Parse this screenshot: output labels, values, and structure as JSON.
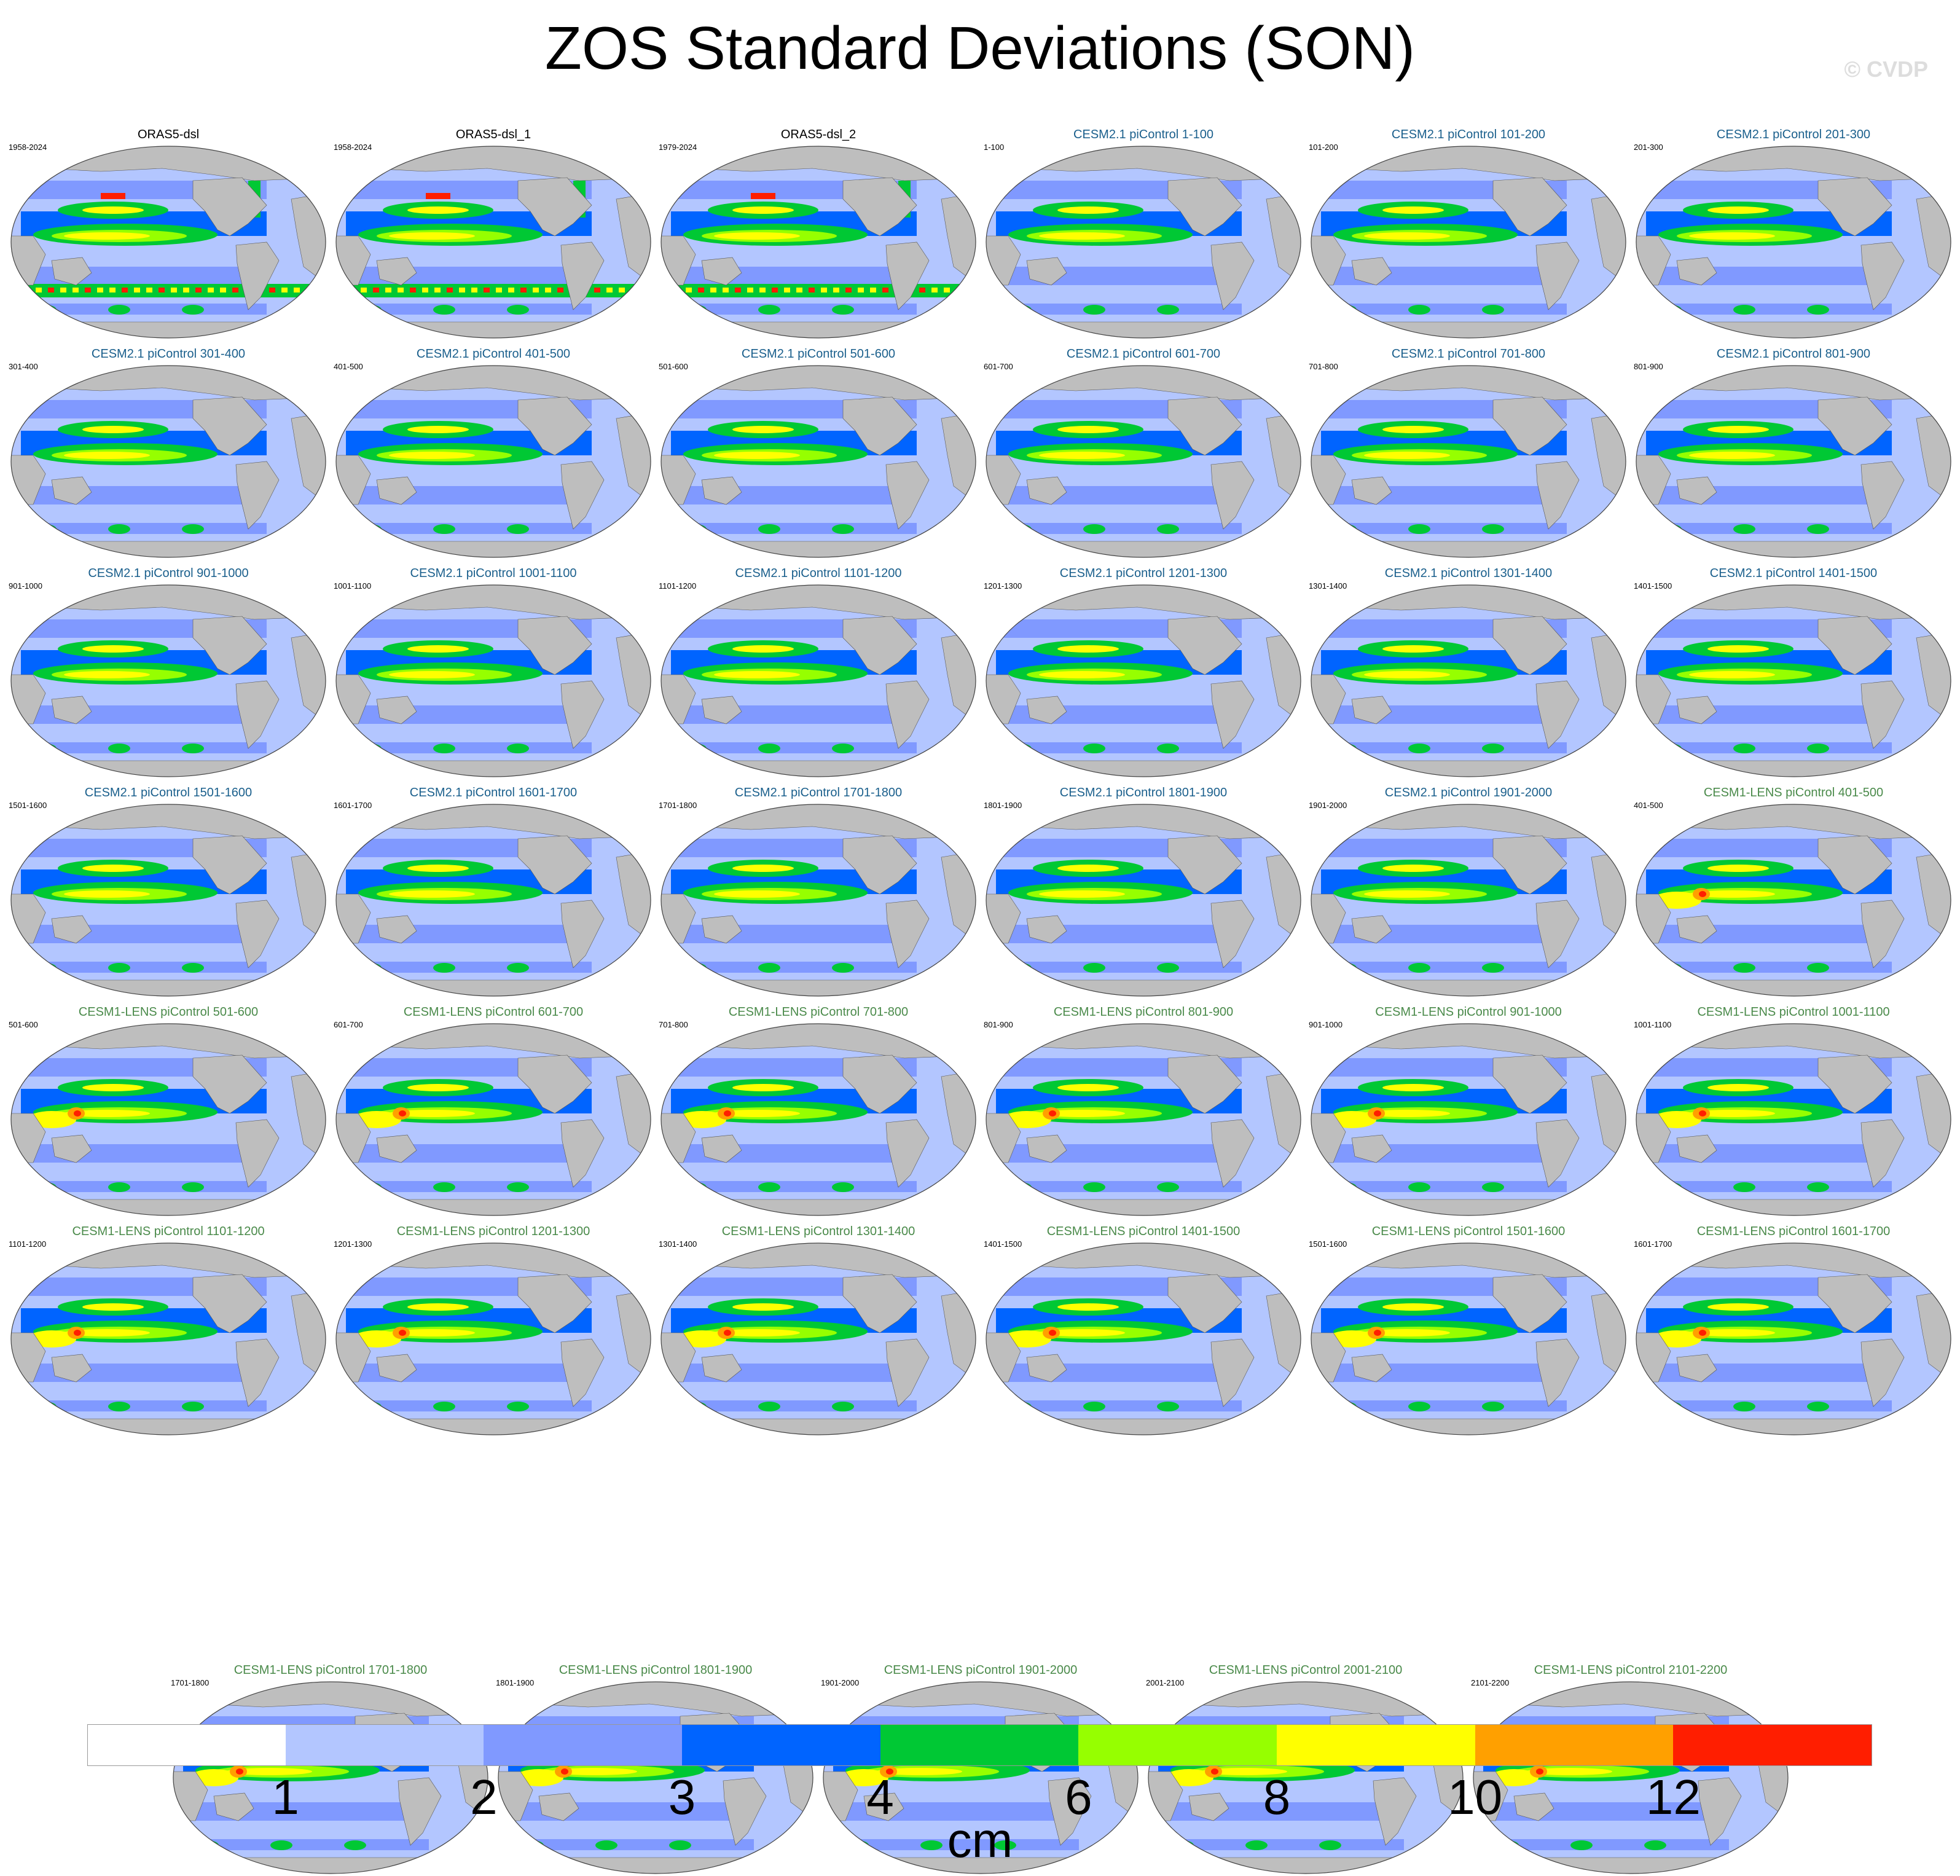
{
  "title": "ZOS Standard Deviations (SON)",
  "copyright": "© CVDP",
  "colorbar": {
    "unit": "cm",
    "tick_labels": [
      "1",
      "2",
      "3",
      "4",
      "6",
      "8",
      "10",
      "12"
    ],
    "colors": [
      "#ffffff",
      "#b3c6ff",
      "#8099ff",
      "#0064ff",
      "#00c834",
      "#96ff00",
      "#ffff00",
      "#ffa000",
      "#ff1e00"
    ]
  },
  "land_color": "#bebebe",
  "panels": [
    {
      "title": "ORAS5-dsl",
      "range": "1958-2024",
      "group": "obs"
    },
    {
      "title": "ORAS5-dsl_1",
      "range": "1958-2024",
      "group": "obs"
    },
    {
      "title": "ORAS5-dsl_2",
      "range": "1979-2024",
      "group": "obs"
    },
    {
      "title": "CESM2.1 piControl 1-100",
      "range": "1-100",
      "group": "c2"
    },
    {
      "title": "CESM2.1 piControl 101-200",
      "range": "101-200",
      "group": "c2"
    },
    {
      "title": "CESM2.1 piControl 201-300",
      "range": "201-300",
      "group": "c2"
    },
    {
      "title": "CESM2.1 piControl 301-400",
      "range": "301-400",
      "group": "c2"
    },
    {
      "title": "CESM2.1 piControl 401-500",
      "range": "401-500",
      "group": "c2"
    },
    {
      "title": "CESM2.1 piControl 501-600",
      "range": "501-600",
      "group": "c2"
    },
    {
      "title": "CESM2.1 piControl 601-700",
      "range": "601-700",
      "group": "c2"
    },
    {
      "title": "CESM2.1 piControl 701-800",
      "range": "701-800",
      "group": "c2"
    },
    {
      "title": "CESM2.1 piControl 801-900",
      "range": "801-900",
      "group": "c2"
    },
    {
      "title": "CESM2.1 piControl 901-1000",
      "range": "901-1000",
      "group": "c2"
    },
    {
      "title": "CESM2.1 piControl 1001-1100",
      "range": "1001-1100",
      "group": "c2"
    },
    {
      "title": "CESM2.1 piControl 1101-1200",
      "range": "1101-1200",
      "group": "c2"
    },
    {
      "title": "CESM2.1 piControl 1201-1300",
      "range": "1201-1300",
      "group": "c2"
    },
    {
      "title": "CESM2.1 piControl 1301-1400",
      "range": "1301-1400",
      "group": "c2"
    },
    {
      "title": "CESM2.1 piControl 1401-1500",
      "range": "1401-1500",
      "group": "c2"
    },
    {
      "title": "CESM2.1 piControl 1501-1600",
      "range": "1501-1600",
      "group": "c2"
    },
    {
      "title": "CESM2.1 piControl 1601-1700",
      "range": "1601-1700",
      "group": "c2"
    },
    {
      "title": "CESM2.1 piControl 1701-1800",
      "range": "1701-1800",
      "group": "c2"
    },
    {
      "title": "CESM2.1 piControl 1801-1900",
      "range": "1801-1900",
      "group": "c2"
    },
    {
      "title": "CESM2.1 piControl 1901-2000",
      "range": "1901-2000",
      "group": "c2"
    },
    {
      "title": "CESM1-LENS piControl 401-500",
      "range": "401-500",
      "group": "c1"
    },
    {
      "title": "CESM1-LENS piControl 501-600",
      "range": "501-600",
      "group": "c1"
    },
    {
      "title": "CESM1-LENS piControl 601-700",
      "range": "601-700",
      "group": "c1"
    },
    {
      "title": "CESM1-LENS piControl 701-800",
      "range": "701-800",
      "group": "c1"
    },
    {
      "title": "CESM1-LENS piControl 801-900",
      "range": "801-900",
      "group": "c1"
    },
    {
      "title": "CESM1-LENS piControl 901-1000",
      "range": "901-1000",
      "group": "c1"
    },
    {
      "title": "CESM1-LENS piControl 1001-1100",
      "range": "1001-1100",
      "group": "c1"
    },
    {
      "title": "CESM1-LENS piControl 1101-1200",
      "range": "1101-1200",
      "group": "c1"
    },
    {
      "title": "CESM1-LENS piControl 1201-1300",
      "range": "1201-1300",
      "group": "c1"
    },
    {
      "title": "CESM1-LENS piControl 1301-1400",
      "range": "1301-1400",
      "group": "c1"
    },
    {
      "title": "CESM1-LENS piControl 1401-1500",
      "range": "1401-1500",
      "group": "c1"
    },
    {
      "title": "CESM1-LENS piControl 1501-1600",
      "range": "1501-1600",
      "group": "c1"
    },
    {
      "title": "CESM1-LENS piControl 1601-1700",
      "range": "1601-1700",
      "group": "c1"
    },
    {
      "title": "CESM1-LENS piControl 1701-1800",
      "range": "1701-1800",
      "group": "c1"
    },
    {
      "title": "CESM1-LENS piControl 1801-1900",
      "range": "1801-1900",
      "group": "c1"
    },
    {
      "title": "CESM1-LENS piControl 1901-2000",
      "range": "1901-2000",
      "group": "c1"
    },
    {
      "title": "CESM1-LENS piControl 2001-2100",
      "range": "2001-2100",
      "group": "c1"
    },
    {
      "title": "CESM1-LENS piControl 2101-2200",
      "range": "2101-2200",
      "group": "c1"
    }
  ]
}
